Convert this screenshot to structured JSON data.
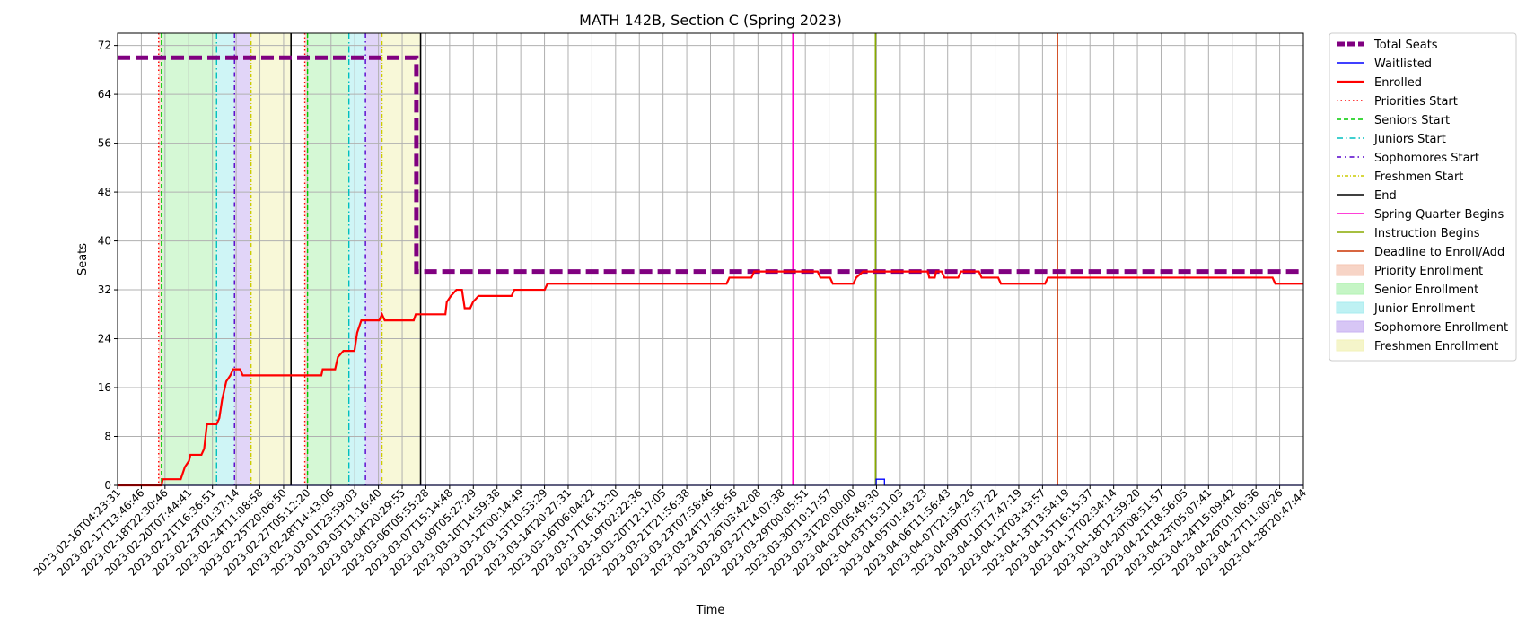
{
  "chart_data": {
    "type": "line",
    "title": "MATH 142B, Section C (Spring 2023)",
    "xlabel": "Time",
    "ylabel": "Seats",
    "ylim": [
      0,
      74
    ],
    "yticks": [
      0,
      8,
      16,
      24,
      32,
      40,
      48,
      56,
      64,
      72
    ],
    "xlim": [
      "2023-02-16T04:23:31",
      "2023-04-28T20:47:44"
    ],
    "xtick_labels": [
      "2023-02-16T04:23:31",
      "2023-02-17T13:46:46",
      "2023-02-18T22:30:46",
      "2023-02-20T07:44:41",
      "2023-02-21T16:36:51",
      "2023-02-23T01:37:14",
      "2023-02-24T11:08:58",
      "2023-02-25T20:06:50",
      "2023-02-27T05:12:20",
      "2023-02-28T14:43:06",
      "2023-03-01T23:59:03",
      "2023-03-03T11:16:40",
      "2023-03-04T20:29:55",
      "2023-03-06T05:55:28",
      "2023-03-07T15:14:48",
      "2023-03-09T05:27:29",
      "2023-03-10T14:59:38",
      "2023-03-12T00:14:49",
      "2023-03-13T10:53:29",
      "2023-03-14T20:27:31",
      "2023-03-16T06:04:22",
      "2023-03-17T16:13:20",
      "2023-03-19T02:22:36",
      "2023-03-20T12:17:05",
      "2023-03-21T21:56:38",
      "2023-03-23T07:58:46",
      "2023-03-24T17:56:56",
      "2023-03-26T03:42:08",
      "2023-03-27T14:07:38",
      "2023-03-29T00:05:51",
      "2023-03-30T10:17:57",
      "2023-03-31T20:00:00",
      "2023-04-02T05:49:30",
      "2023-04-03T15:31:03",
      "2023-04-05T01:43:23",
      "2023-04-06T11:56:43",
      "2023-04-07T21:54:26",
      "2023-04-09T07:57:22",
      "2023-04-10T17:47:19",
      "2023-04-12T03:43:57",
      "2023-04-13T13:54:19",
      "2023-04-15T16:15:37",
      "2023-04-17T02:34:14",
      "2023-04-18T12:59:20",
      "2023-04-20T08:51:57",
      "2023-04-21T18:56:05",
      "2023-04-23T05:07:41",
      "2023-04-24T15:09:42",
      "2023-04-26T01:06:36",
      "2023-04-27T11:00:26",
      "2023-04-28T20:47:44"
    ],
    "grid": true,
    "legend_position": "outside-right",
    "series": [
      {
        "name": "Total Seats",
        "color": "#800080",
        "style": "dashed-thick",
        "points": [
          [
            "2023-02-16T04:23:31",
            70
          ],
          [
            "2023-03-06T05:55:28",
            70
          ],
          [
            "2023-03-06T05:55:28",
            35
          ],
          [
            "2023-04-28T20:47:44",
            35
          ]
        ]
      },
      {
        "name": "Waitlisted",
        "color": "#0000ff",
        "style": "step",
        "points": [
          [
            "2023-02-16T04:23:31",
            0
          ],
          [
            "2023-04-03T01:00:00",
            0
          ],
          [
            "2023-04-03T01:00:00",
            1
          ],
          [
            "2023-04-03T13:00:00",
            1
          ],
          [
            "2023-04-03T13:00:00",
            0
          ],
          [
            "2023-04-28T20:47:44",
            0
          ]
        ]
      },
      {
        "name": "Enrolled",
        "color": "#ff0000",
        "style": "step",
        "points": [
          [
            "2023-02-16T04:23:31",
            0
          ],
          [
            "2023-02-18T20:00:00",
            0
          ],
          [
            "2023-02-18T22:00:00",
            1
          ],
          [
            "2023-02-20T00:00:00",
            1
          ],
          [
            "2023-02-20T06:00:00",
            3
          ],
          [
            "2023-02-20T12:00:00",
            4
          ],
          [
            "2023-02-20T14:00:00",
            5
          ],
          [
            "2023-02-21T06:00:00",
            5
          ],
          [
            "2023-02-21T10:00:00",
            6
          ],
          [
            "2023-02-21T14:00:00",
            10
          ],
          [
            "2023-02-22T04:00:00",
            10
          ],
          [
            "2023-02-22T08:00:00",
            11
          ],
          [
            "2023-02-22T12:00:00",
            14
          ],
          [
            "2023-02-22T18:00:00",
            17
          ],
          [
            "2023-02-23T00:00:00",
            18
          ],
          [
            "2023-02-23T04:00:00",
            19
          ],
          [
            "2023-02-23T14:00:00",
            19
          ],
          [
            "2023-02-23T18:00:00",
            18
          ],
          [
            "2023-02-28T00:00:00",
            18
          ],
          [
            "2023-02-28T12:00:00",
            18
          ],
          [
            "2023-02-28T14:00:00",
            19
          ],
          [
            "2023-03-01T08:00:00",
            19
          ],
          [
            "2023-03-01T12:00:00",
            21
          ],
          [
            "2023-03-01T20:00:00",
            22
          ],
          [
            "2023-03-02T12:00:00",
            22
          ],
          [
            "2023-03-02T16:00:00",
            25
          ],
          [
            "2023-03-02T22:00:00",
            27
          ],
          [
            "2023-03-04T00:00:00",
            27
          ],
          [
            "2023-03-04T04:00:00",
            28
          ],
          [
            "2023-03-04T08:00:00",
            27
          ],
          [
            "2023-03-06T02:00:00",
            27
          ],
          [
            "2023-03-06T05:00:00",
            28
          ],
          [
            "2023-03-08T00:00:00",
            28
          ],
          [
            "2023-03-08T02:00:00",
            30
          ],
          [
            "2023-03-08T08:00:00",
            31
          ],
          [
            "2023-03-08T16:00:00",
            32
          ],
          [
            "2023-03-09T00:00:00",
            32
          ],
          [
            "2023-03-09T04:00:00",
            29
          ],
          [
            "2023-03-09T12:00:00",
            29
          ],
          [
            "2023-03-09T16:00:00",
            30
          ],
          [
            "2023-03-10T00:00:00",
            31
          ],
          [
            "2023-03-12T00:00:00",
            31
          ],
          [
            "2023-03-12T04:00:00",
            32
          ],
          [
            "2023-03-14T00:00:00",
            32
          ],
          [
            "2023-03-14T04:00:00",
            33
          ],
          [
            "2023-03-25T00:00:00",
            33
          ],
          [
            "2023-03-25T04:00:00",
            34
          ],
          [
            "2023-03-26T12:00:00",
            34
          ],
          [
            "2023-03-26T16:00:00",
            35
          ],
          [
            "2023-03-30T12:00:00",
            35
          ],
          [
            "2023-03-30T16:00:00",
            34
          ],
          [
            "2023-03-31T06:00:00",
            34
          ],
          [
            "2023-03-31T10:00:00",
            33
          ],
          [
            "2023-04-01T16:00:00",
            33
          ],
          [
            "2023-04-01T20:00:00",
            34
          ],
          [
            "2023-04-02T06:00:00",
            35
          ],
          [
            "2023-04-06T04:00:00",
            35
          ],
          [
            "2023-04-06T06:00:00",
            34
          ],
          [
            "2023-04-06T14:00:00",
            34
          ],
          [
            "2023-04-06T16:00:00",
            35
          ],
          [
            "2023-04-07T00:00:00",
            35
          ],
          [
            "2023-04-07T04:00:00",
            34
          ],
          [
            "2023-04-08T00:00:00",
            34
          ],
          [
            "2023-04-08T04:00:00",
            35
          ],
          [
            "2023-04-09T06:00:00",
            35
          ],
          [
            "2023-04-09T10:00:00",
            34
          ],
          [
            "2023-04-10T10:00:00",
            34
          ],
          [
            "2023-04-10T14:00:00",
            33
          ],
          [
            "2023-04-13T06:00:00",
            33
          ],
          [
            "2023-04-13T10:00:00",
            34
          ],
          [
            "2023-04-27T00:00:00",
            34
          ],
          [
            "2023-04-27T04:00:00",
            33
          ],
          [
            "2023-04-28T20:47:44",
            33
          ]
        ]
      }
    ],
    "event_lines": [
      {
        "name": "Priorities Start",
        "color": "#ff0000",
        "style": "dotted",
        "times": [
          "2023-02-18T16:00:00",
          "2023-02-27T12:00:00"
        ]
      },
      {
        "name": "Seniors Start",
        "color": "#00cc00",
        "style": "dashed",
        "times": [
          "2023-02-18T20:00:00",
          "2023-02-27T16:00:00"
        ]
      },
      {
        "name": "Juniors Start",
        "color": "#00bfbf",
        "style": "dashdot",
        "times": [
          "2023-02-22T04:00:00",
          "2023-03-02T04:00:00"
        ]
      },
      {
        "name": "Sophomores Start",
        "color": "#5500cc",
        "style": "dashdotdot",
        "times": [
          "2023-02-23T06:00:00",
          "2023-03-03T04:00:00"
        ]
      },
      {
        "name": "Freshmen Start",
        "color": "#cccc00",
        "style": "dashdot-thin",
        "times": [
          "2023-02-24T06:00:00",
          "2023-03-04T04:00:00"
        ]
      },
      {
        "name": "End",
        "color": "#000000",
        "style": "solid",
        "times": [
          "2023-02-26T16:00:00",
          "2023-03-06T12:00:00"
        ]
      },
      {
        "name": "Spring Quarter Begins",
        "color": "#ff00cc",
        "style": "solid",
        "times": [
          "2023-03-29T00:05:51"
        ]
      },
      {
        "name": "Instruction Begins",
        "color": "#88aa00",
        "style": "solid",
        "times": [
          "2023-04-03T00:00:00"
        ]
      },
      {
        "name": "Deadline to Enroll/Add",
        "color": "#cc3300",
        "style": "solid",
        "times": [
          "2023-04-14T00:00:00"
        ]
      }
    ],
    "spans": [
      {
        "name": "Priority Enrollment",
        "color": "#f4c6b3",
        "ranges": [
          [
            "2023-02-18T16:00:00",
            "2023-02-18T20:00:00"
          ],
          [
            "2023-02-27T12:00:00",
            "2023-02-27T16:00:00"
          ]
        ]
      },
      {
        "name": "Senior Enrollment",
        "color": "#b2f2b2",
        "ranges": [
          [
            "2023-02-18T20:00:00",
            "2023-02-22T04:00:00"
          ],
          [
            "2023-02-27T16:00:00",
            "2023-03-02T04:00:00"
          ]
        ]
      },
      {
        "name": "Junior Enrollment",
        "color": "#a8ecef",
        "ranges": [
          [
            "2023-02-22T04:00:00",
            "2023-02-23T06:00:00"
          ],
          [
            "2023-03-02T04:00:00",
            "2023-03-03T04:00:00"
          ]
        ]
      },
      {
        "name": "Sophomore Enrollment",
        "color": "#c9b3f2",
        "ranges": [
          [
            "2023-02-23T06:00:00",
            "2023-02-24T06:00:00"
          ],
          [
            "2023-03-03T04:00:00",
            "2023-03-04T04:00:00"
          ]
        ]
      },
      {
        "name": "Freshmen Enrollment",
        "color": "#f2f2b8",
        "ranges": [
          [
            "2023-02-24T06:00:00",
            "2023-02-26T16:00:00"
          ],
          [
            "2023-03-04T04:00:00",
            "2023-03-06T12:00:00"
          ]
        ]
      }
    ]
  }
}
